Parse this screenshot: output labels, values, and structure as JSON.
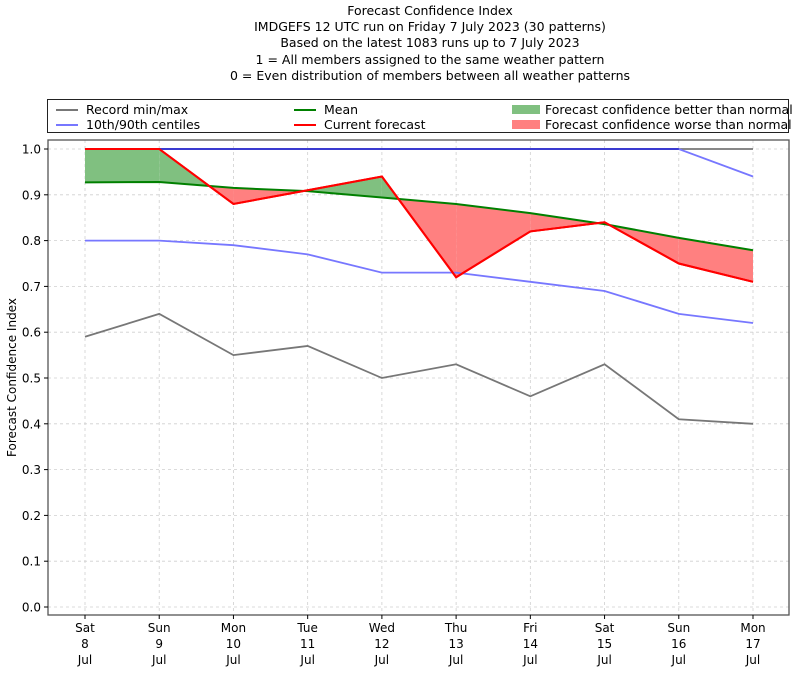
{
  "chart_data": {
    "type": "line",
    "title_lines": [
      "Forecast Confidence Index",
      "IMDGEFS 12 UTC run on Friday 7 July 2023 (30 patterns)",
      "Based on the latest 1083 runs up to 7 July 2023",
      "1 = All members assigned to the same weather pattern",
      "0 = Even distribution of members between all weather patterns"
    ],
    "xlabel": "",
    "ylabel": "Forecast Confidence Index",
    "ylim": [
      0.0,
      1.0
    ],
    "yticks": [
      "0.0",
      "0.1",
      "0.2",
      "0.3",
      "0.4",
      "0.5",
      "0.6",
      "0.7",
      "0.8",
      "0.9",
      "1.0"
    ],
    "ytick_values": [
      0.0,
      0.1,
      0.2,
      0.3,
      0.4,
      0.5,
      0.6,
      0.7,
      0.8,
      0.9,
      1.0
    ],
    "grid": true,
    "legend_position": "top, above plot",
    "categories": [
      [
        "Sat",
        "8",
        "Jul"
      ],
      [
        "Sun",
        "9",
        "Jul"
      ],
      [
        "Mon",
        "10",
        "Jul"
      ],
      [
        "Tue",
        "11",
        "Jul"
      ],
      [
        "Wed",
        "12",
        "Jul"
      ],
      [
        "Thu",
        "13",
        "Jul"
      ],
      [
        "Fri",
        "14",
        "Jul"
      ],
      [
        "Sat",
        "15",
        "Jul"
      ],
      [
        "Sun",
        "16",
        "Jul"
      ],
      [
        "Mon",
        "17",
        "Jul"
      ]
    ],
    "series": [
      {
        "name": "Record min",
        "legend": "Record min/max",
        "color": "#777777",
        "values": [
          0.59,
          0.64,
          0.55,
          0.57,
          0.5,
          0.53,
          0.46,
          0.53,
          0.41,
          0.4
        ]
      },
      {
        "name": "Record max",
        "legend": "Record min/max",
        "color": "#777777",
        "values": [
          1.0,
          1.0,
          1.0,
          1.0,
          1.0,
          1.0,
          1.0,
          1.0,
          1.0,
          1.0
        ]
      },
      {
        "name": "10th centile",
        "legend": "10th/90th centiles",
        "color": "#7777ff",
        "values": [
          0.8,
          0.8,
          0.79,
          0.77,
          0.73,
          0.73,
          0.71,
          0.69,
          0.64,
          0.62
        ]
      },
      {
        "name": "90th centile",
        "legend": "10th/90th centiles",
        "color": "#7777ff",
        "values": [
          1.0,
          1.0,
          1.0,
          1.0,
          1.0,
          1.0,
          1.0,
          1.0,
          1.0,
          0.94
        ]
      },
      {
        "name": "Mean",
        "legend": "Mean",
        "color": "#008000",
        "values": [
          0.927,
          0.928,
          0.915,
          0.908,
          0.894,
          0.88,
          0.86,
          0.836,
          0.806,
          0.779
        ]
      },
      {
        "name": "Current forecast",
        "legend": "Current forecast",
        "color": "#ff0000",
        "values": [
          1.0,
          1.0,
          0.88,
          0.91,
          0.94,
          0.72,
          0.82,
          0.84,
          0.75,
          0.71
        ]
      }
    ],
    "fills": [
      {
        "name": "Forecast confidence better than normal",
        "color": "#80c080",
        "condition": "current > mean"
      },
      {
        "name": "Forecast confidence worse than normal",
        "color": "#ff8080",
        "condition": "current < mean"
      }
    ]
  },
  "legend": {
    "record": "Record min/max",
    "centiles": "10th/90th centiles",
    "mean": "Mean",
    "current": "Current forecast",
    "better": "Forecast confidence better than normal",
    "worse": "Forecast confidence worse than normal"
  }
}
